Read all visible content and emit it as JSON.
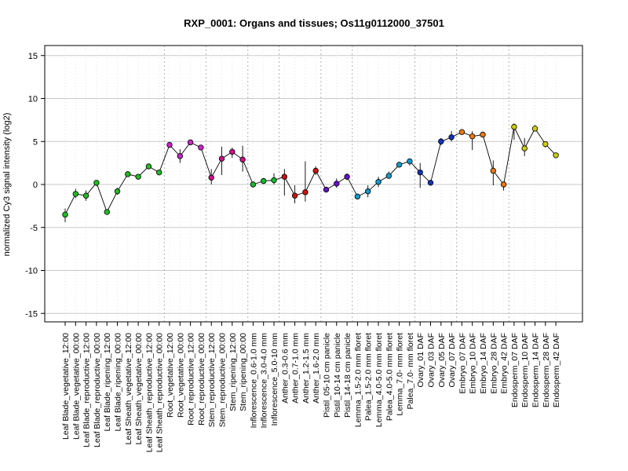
{
  "chart_data": {
    "type": "line",
    "title": "RXP_0001: Organs and tissues; Os11g0112000_37501",
    "ylabel": "normalized Cy3 signal intensity (log2)",
    "xlabel": "",
    "ylim": [
      -16,
      16
    ],
    "yticks": [
      -15,
      -10,
      -5,
      0,
      5,
      10,
      15
    ],
    "grid": true,
    "categories": [
      "Leaf Blade_vegetative_12:00",
      "Leaf Blade_vegetative_00:00",
      "Leaf Blade_reproductive_12:00",
      "Leaf Blade_reproductive_00:00",
      "Leaf Blade_ripening_12:00",
      "Leaf Blade_ripening_00:00",
      "Leaf Sheath_vegetative_12:00",
      "Leaf Sheath_vegetative_00:00",
      "Leaf Sheath_reproductive_12:00",
      "Leaf Sheath_reproductive_00:00",
      "Root_vegetative_12:00",
      "Root_vegetative_00:00",
      "Root_reproductive_12:00",
      "Root_reproductive_00:00",
      "Stem_reproductive_12:00",
      "Stem_reproductive_00:00",
      "Stem_ripening_12:00",
      "Stem_ripening_00:00",
      "Inflorescence_0.6-1.0 mm",
      "Inflorescence_3.0-4.0 mm",
      "Inflorescence_5.0-10 mm",
      "Anther_0.3-0.6 mm",
      "Anther_0.7-1.0 mm",
      "Anther_1.2-1.5 mm",
      "Anther_1.6-2.0 mm",
      "Pistil_05-10 cm panicle",
      "Pistil_10-14 cm panicle",
      "Pistil_14-18 cm panicle",
      "Lemma_1.5-2.0 mm floret",
      "Palea_1.5-2.0 mm floret",
      "Lemma_4.0-5.0 mm floret",
      "Palea_4.0-5.0 mm floret",
      "Lemma_7.0- mm floret",
      "Palea_7.0- mm floret",
      "Ovary_01 DAF",
      "Ovary_03 DAF",
      "Ovary_05 DAF",
      "Ovary_07 DAF",
      "Embryo_07 DAF",
      "Embryo_10 DAF",
      "Embryo_14 DAF",
      "Embryo_28 DAF",
      "Embryo_42 DAF",
      "Endosperm_07 DAF",
      "Endosperm_10 DAF",
      "Endosperm_14 DAF",
      "Endosperm_28 DAF",
      "Endosperm_42 DAF"
    ],
    "values": [
      -3.5,
      -1.1,
      -1.3,
      0.2,
      -3.2,
      -0.8,
      1.2,
      0.9,
      2.1,
      1.4,
      4.6,
      3.3,
      4.9,
      4.3,
      0.8,
      3.0,
      3.8,
      2.9,
      0.0,
      0.4,
      0.5,
      0.9,
      -1.3,
      -0.9,
      1.6,
      -0.6,
      0.1,
      0.9,
      -1.4,
      -0.8,
      0.3,
      1.0,
      2.3,
      2.7,
      1.4,
      0.2,
      5.0,
      5.5,
      6.1,
      5.6,
      5.8,
      1.6,
      0.0,
      6.7,
      4.2,
      6.5,
      4.7,
      3.4
    ],
    "error_low": [
      -4.4,
      -1.6,
      -1.9,
      -0.2,
      -3.4,
      -1.2,
      1.1,
      0.7,
      1.9,
      1.2,
      4.4,
      2.5,
      4.6,
      4.1,
      0.0,
      1.1,
      3.1,
      1.5,
      -0.2,
      0.1,
      0.0,
      -1.3,
      -2.2,
      -2.0,
      1.1,
      -0.7,
      -0.4,
      0.5,
      -1.7,
      -1.5,
      -0.3,
      0.7,
      2.1,
      2.2,
      -0.4,
      0.0,
      4.6,
      5.0,
      5.9,
      4.0,
      5.5,
      -0.1,
      -0.7,
      5.2,
      3.3,
      6.2,
      4.3,
      3.2
    ],
    "error_high": [
      -2.8,
      -0.5,
      -0.7,
      0.5,
      -3.0,
      -0.4,
      1.4,
      1.1,
      2.3,
      1.6,
      4.8,
      4.1,
      5.2,
      4.5,
      1.8,
      4.4,
      4.3,
      4.5,
      0.2,
      0.7,
      1.3,
      1.8,
      -0.1,
      2.7,
      2.1,
      -0.5,
      0.7,
      1.3,
      -1.1,
      -0.1,
      0.9,
      1.5,
      2.5,
      2.9,
      2.5,
      0.4,
      5.4,
      6.2,
      6.4,
      6.2,
      6.1,
      2.8,
      0.3,
      7.1,
      5.4,
      6.9,
      5.0,
      3.6
    ],
    "colors": [
      "#22bb22",
      "#22bb22",
      "#22bb22",
      "#22bb22",
      "#22bb22",
      "#22bb22",
      "#22bb22",
      "#22bb22",
      "#22bb22",
      "#22bb22",
      "#cc22cc",
      "#cc22cc",
      "#cc22cc",
      "#cc22cc",
      "#cc1188",
      "#cc1188",
      "#cc1188",
      "#cc1188",
      "#11bb33",
      "#11bb33",
      "#11bb33",
      "#cc1111",
      "#cc1111",
      "#cc1111",
      "#cc1111",
      "#6611cc",
      "#6611cc",
      "#6611cc",
      "#1199cc",
      "#1199cc",
      "#1199cc",
      "#1199cc",
      "#1199cc",
      "#1199cc",
      "#1133bb",
      "#1133bb",
      "#1133bb",
      "#1133bb",
      "#ee7711",
      "#ee7711",
      "#ee7711",
      "#ee7711",
      "#ee7711",
      "#cccc11",
      "#cccc11",
      "#cccc11",
      "#cccc11",
      "#cccc11"
    ]
  }
}
